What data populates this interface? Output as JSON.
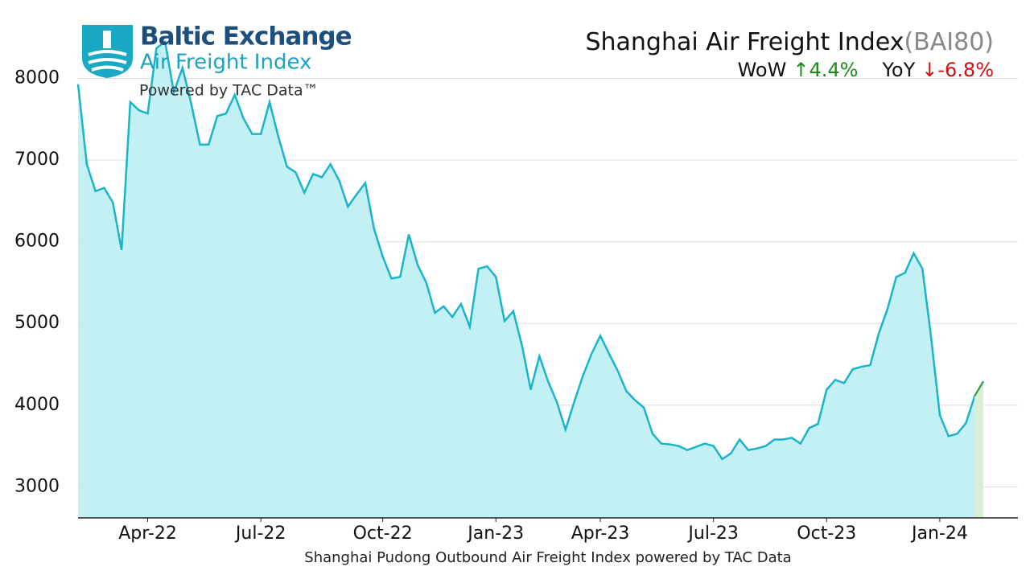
{
  "chart_data": {
    "type": "line",
    "title": "Shanghai Air Freight Index",
    "title_code": "(BAI80)",
    "wow_label": "WoW",
    "wow_change": "↑4.4%",
    "yoy_label": "YoY",
    "yoy_change": "↓-6.8%",
    "logo": {
      "name": "Baltic Exchange",
      "product": "Air Freight Index",
      "powered": "Powered by TAC Data™"
    },
    "xlabel": "Shanghai Pudong Outbound Air Freight Index powered by TAC Data",
    "categories": [
      null,
      null,
      null,
      null,
      null,
      null,
      null,
      null,
      "Apr-22",
      null,
      null,
      null,
      null,
      null,
      null,
      null,
      null,
      null,
      null,
      null,
      null,
      "Jul-22",
      null,
      null,
      null,
      null,
      null,
      null,
      null,
      null,
      null,
      null,
      null,
      null,
      null,
      "Oct-22",
      null,
      null,
      null,
      null,
      null,
      null,
      null,
      null,
      null,
      null,
      null,
      null,
      "Jan-23",
      null,
      null,
      null,
      null,
      null,
      null,
      null,
      null,
      null,
      null,
      null,
      "Apr-23",
      null,
      null,
      null,
      null,
      null,
      null,
      null,
      null,
      null,
      null,
      null,
      null,
      "Jul-23",
      null,
      null,
      null,
      null,
      null,
      null,
      null,
      null,
      null,
      null,
      null,
      null,
      "Oct-23",
      null,
      null,
      null,
      null,
      null,
      null,
      null,
      null,
      null,
      null,
      null,
      null,
      "Jan-24",
      null,
      null,
      null,
      null,
      null
    ],
    "series": [
      {
        "name": "BAI80",
        "color": "#1ab4cc",
        "fill": "#bdeef2",
        "last_change_color": "#3a9a3a",
        "last_change_fill": "#d8efd5",
        "values": [
          7930,
          6950,
          6620,
          6660,
          6480,
          5900,
          7710,
          7610,
          7570,
          8370,
          8450,
          7830,
          8130,
          7690,
          7190,
          7190,
          7540,
          7570,
          7800,
          7510,
          7320,
          7320,
          7710,
          7290,
          6920,
          6850,
          6600,
          6830,
          6790,
          6950,
          6750,
          6430,
          6580,
          6720,
          6160,
          5820,
          5550,
          5570,
          6090,
          5720,
          5500,
          5130,
          5210,
          5080,
          5240,
          4960,
          5670,
          5700,
          5570,
          5030,
          5150,
          4730,
          4190,
          4600,
          4290,
          4040,
          3700,
          4040,
          4360,
          4630,
          4850,
          4630,
          4420,
          4170,
          4060,
          3970,
          3650,
          3530,
          3520,
          3500,
          3450,
          3490,
          3530,
          3500,
          3340,
          3410,
          3580,
          3450,
          3470,
          3500,
          3580,
          3580,
          3600,
          3530,
          3720,
          3770,
          4190,
          4310,
          4270,
          4440,
          4470,
          4490,
          4880,
          5180,
          5570,
          5620,
          5860,
          5670,
          4830,
          3880,
          3620,
          3650,
          3780,
          4110,
          4290
        ]
      }
    ],
    "ylim": [
      2620,
      8960
    ],
    "yticks": [
      3000,
      4000,
      5000,
      6000,
      7000,
      8000
    ],
    "grid": true
  }
}
